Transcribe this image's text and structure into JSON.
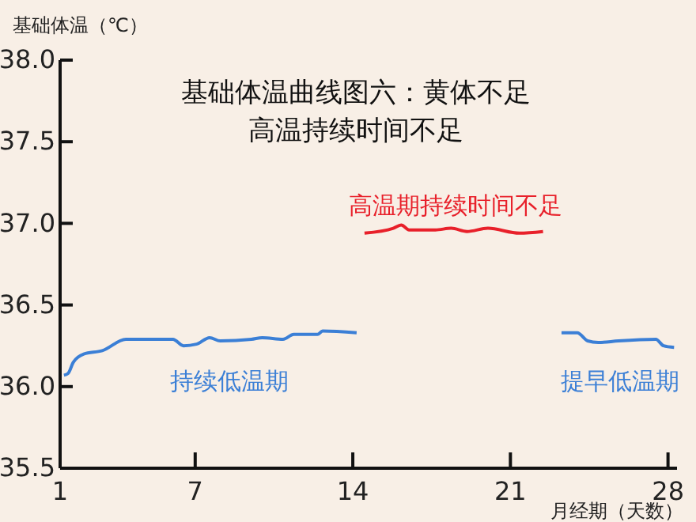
{
  "chart_data": {
    "type": "line",
    "title": "基础体温曲线图六：黄体不足",
    "subtitle": "高温持续时间不足",
    "ylabel": "基础体温（℃）",
    "xlabel": "月经期（天数）",
    "xlim": [
      1,
      28.4
    ],
    "xticks": [
      1,
      7,
      14,
      21,
      28
    ],
    "ylim": [
      35.5,
      38.0
    ],
    "yticks": [
      {
        "value": 35.5,
        "label": "35.5"
      },
      {
        "value": 36.0,
        "label": "36.0"
      },
      {
        "value": 36.5,
        "label": "36.5"
      },
      {
        "value": 37.0,
        "label": "37.0"
      },
      {
        "value": 37.5,
        "label": "37.5"
      },
      {
        "value": 38.0,
        "label": "38.0"
      }
    ],
    "grid": false,
    "marker": "none",
    "line_style": "solid",
    "series": [
      {
        "color": "#3b7fd6",
        "x": [
          1.17,
          1.35,
          1.59,
          2.05,
          2.87,
          3.92,
          6.01,
          6.48,
          7.06,
          7.64,
          8.11,
          9.5,
          9.98,
          10.9,
          11.38,
          12.43,
          12.66,
          14.17,
          18,
          23.27,
          23.97,
          24.43,
          24.9,
          25.8,
          27.46,
          27.8,
          28.27
        ],
        "values": [
          36.07,
          36.08,
          36.15,
          36.2,
          36.22,
          36.29,
          36.29,
          36.25,
          36.26,
          36.3,
          36.28,
          36.29,
          36.3,
          36.29,
          36.32,
          36.32,
          36.34,
          36.33,
          null,
          36.33,
          36.33,
          36.28,
          36.27,
          36.28,
          36.29,
          36.25,
          36.24
        ]
      },
      {
        "color": "#e8202a",
        "x": [
          14.52,
          15.8,
          16.15,
          16.5,
          17.67,
          18.37,
          19.07,
          20.0,
          21.4,
          22.45
        ],
        "values": [
          36.94,
          36.97,
          36.99,
          36.96,
          36.96,
          36.97,
          36.95,
          36.97,
          36.94,
          36.95
        ]
      }
    ],
    "annotations": [
      "持续低温期",
      "高温期持续时间不足",
      "提早低温期"
    ]
  }
}
